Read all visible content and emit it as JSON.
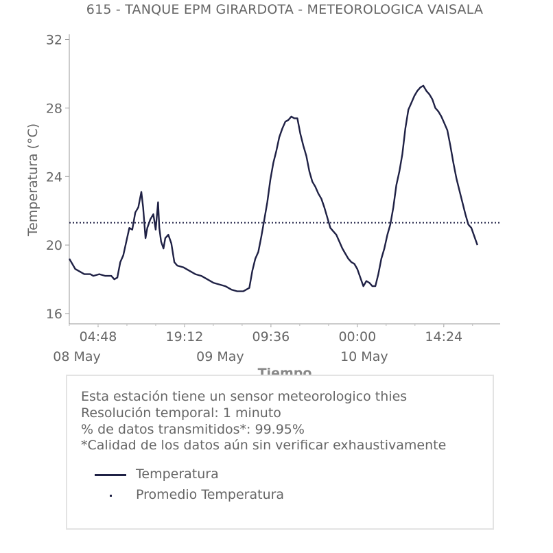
{
  "chart_data": {
    "type": "line",
    "title": "615 - TANQUE EPM GIRARDOTA - METEOROLOGICA VAISALA",
    "xlabel": "Tiempo",
    "ylabel": "Temperatura (°C)",
    "ylim": [
      15.4,
      32.3
    ],
    "yticks": [
      "16",
      "20",
      "24",
      "28",
      "32"
    ],
    "xlim_hours": [
      0,
      71.8
    ],
    "xticks_time": [
      "04:48",
      "19:12",
      "09:36",
      "00:00",
      "14:24"
    ],
    "xticks_date": [
      "08 May",
      "09 May",
      "10 May"
    ],
    "x_units": "hours since 08 May 00:00",
    "series": [
      {
        "name": "Temperatura",
        "color": "#1f2145",
        "style": "solid",
        "points": [
          [
            0,
            19.2
          ],
          [
            0.5,
            18.9
          ],
          [
            1,
            18.6
          ],
          [
            1.5,
            18.5
          ],
          [
            2,
            18.4
          ],
          [
            2.5,
            18.3
          ],
          [
            3,
            18.3
          ],
          [
            3.5,
            18.3
          ],
          [
            4,
            18.2
          ],
          [
            5,
            18.3
          ],
          [
            6,
            18.2
          ],
          [
            7,
            18.2
          ],
          [
            7.5,
            18.0
          ],
          [
            8,
            18.1
          ],
          [
            8.5,
            19.0
          ],
          [
            9,
            19.4
          ],
          [
            9.5,
            20.2
          ],
          [
            10,
            21.0
          ],
          [
            10.5,
            20.9
          ],
          [
            11,
            21.9
          ],
          [
            11.5,
            22.2
          ],
          [
            12,
            23.1
          ],
          [
            12.3,
            22.2
          ],
          [
            12.7,
            20.4
          ],
          [
            13,
            21.0
          ],
          [
            13.5,
            21.5
          ],
          [
            14,
            21.8
          ],
          [
            14.4,
            20.9
          ],
          [
            14.8,
            22.5
          ],
          [
            15,
            21.0
          ],
          [
            15.3,
            20.2
          ],
          [
            15.7,
            19.8
          ],
          [
            16,
            20.4
          ],
          [
            16.5,
            20.6
          ],
          [
            17,
            20.1
          ],
          [
            17.5,
            19.0
          ],
          [
            18,
            18.8
          ],
          [
            19,
            18.7
          ],
          [
            20,
            18.5
          ],
          [
            21,
            18.3
          ],
          [
            22,
            18.2
          ],
          [
            23,
            18.0
          ],
          [
            24,
            17.8
          ],
          [
            25,
            17.7
          ],
          [
            26,
            17.6
          ],
          [
            27,
            17.4
          ],
          [
            28,
            17.3
          ],
          [
            29,
            17.3
          ],
          [
            30,
            17.5
          ],
          [
            30.5,
            18.5
          ],
          [
            31,
            19.2
          ],
          [
            31.5,
            19.6
          ],
          [
            32,
            20.5
          ],
          [
            32.5,
            21.5
          ],
          [
            33,
            22.5
          ],
          [
            33.5,
            23.8
          ],
          [
            34,
            24.8
          ],
          [
            34.5,
            25.5
          ],
          [
            35,
            26.3
          ],
          [
            35.5,
            26.8
          ],
          [
            36,
            27.2
          ],
          [
            36.5,
            27.3
          ],
          [
            37,
            27.5
          ],
          [
            37.5,
            27.4
          ],
          [
            38,
            27.4
          ],
          [
            38.5,
            26.5
          ],
          [
            39,
            25.8
          ],
          [
            39.5,
            25.2
          ],
          [
            40,
            24.3
          ],
          [
            40.5,
            23.7
          ],
          [
            41,
            23.4
          ],
          [
            41.5,
            23.0
          ],
          [
            42,
            22.7
          ],
          [
            42.5,
            22.2
          ],
          [
            43,
            21.6
          ],
          [
            43.5,
            21.0
          ],
          [
            44,
            20.8
          ],
          [
            44.5,
            20.6
          ],
          [
            45,
            20.2
          ],
          [
            45.5,
            19.8
          ],
          [
            46,
            19.5
          ],
          [
            46.5,
            19.2
          ],
          [
            47,
            19.0
          ],
          [
            47.5,
            18.9
          ],
          [
            48,
            18.6
          ],
          [
            48.5,
            18.1
          ],
          [
            49,
            17.6
          ],
          [
            49.5,
            17.9
          ],
          [
            50,
            17.8
          ],
          [
            50.5,
            17.6
          ],
          [
            51,
            17.6
          ],
          [
            51.5,
            18.3
          ],
          [
            52,
            19.2
          ],
          [
            52.5,
            19.8
          ],
          [
            53,
            20.6
          ],
          [
            53.5,
            21.2
          ],
          [
            54,
            22.2
          ],
          [
            54.5,
            23.5
          ],
          [
            55,
            24.3
          ],
          [
            55.5,
            25.3
          ],
          [
            56,
            26.8
          ],
          [
            56.5,
            27.9
          ],
          [
            57,
            28.3
          ],
          [
            57.5,
            28.7
          ],
          [
            58,
            29.0
          ],
          [
            58.5,
            29.2
          ],
          [
            59,
            29.3
          ],
          [
            59.5,
            29.0
          ],
          [
            60,
            28.8
          ],
          [
            60.5,
            28.5
          ],
          [
            61,
            28.0
          ],
          [
            61.5,
            27.8
          ],
          [
            62,
            27.5
          ],
          [
            62.5,
            27.1
          ],
          [
            63,
            26.7
          ],
          [
            63.5,
            25.8
          ],
          [
            64,
            24.8
          ],
          [
            64.5,
            23.9
          ],
          [
            65,
            23.2
          ],
          [
            65.5,
            22.5
          ],
          [
            66,
            21.8
          ],
          [
            66.5,
            21.2
          ],
          [
            67,
            21.0
          ],
          [
            67.5,
            20.5
          ],
          [
            68,
            20.0
          ]
        ]
      },
      {
        "name": "Promedio Temperatura",
        "color": "#1f2145",
        "style": "dotted",
        "value": 21.3
      }
    ]
  },
  "info": {
    "line1": "Esta estación tiene un sensor meteorologico thies",
    "line2": "Resolución temporal: 1 minuto",
    "line3": "% de datos transmitidos*: 99.95%",
    "line4": "*Calidad de los datos aún sin verificar exhaustivamente"
  },
  "legend": {
    "item1": "Temperatura",
    "item2": "Promedio Temperatura"
  }
}
